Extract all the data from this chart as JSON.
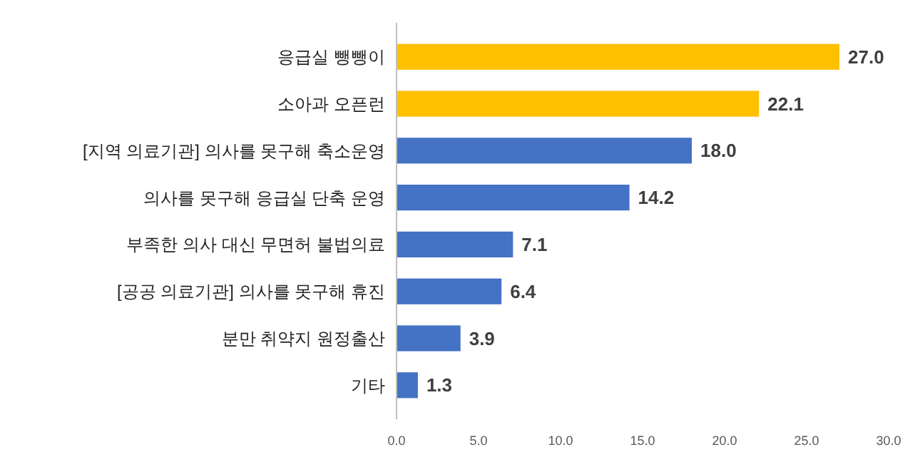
{
  "chart_data": {
    "type": "bar",
    "orientation": "horizontal",
    "categories": [
      "응급실 뺑뺑이",
      "소아과 오픈런",
      "[지역 의료기관] 의사를 못구해 축소운영",
      "의사를 못구해 응급실 단축 운영",
      "부족한 의사 대신 무면허 불법의료",
      "[공공 의료기관] 의사를 못구해 휴진",
      "분만 취약지 원정출산",
      "기타"
    ],
    "values": [
      27.0,
      22.1,
      18.0,
      14.2,
      7.1,
      6.4,
      3.9,
      1.3
    ],
    "value_labels": [
      "27.0",
      "22.1",
      "18.0",
      "14.2",
      "7.1",
      "6.4",
      "3.9",
      "1.3"
    ],
    "colors": [
      "#ffc000",
      "#ffc000",
      "#4472c4",
      "#4472c4",
      "#4472c4",
      "#4472c4",
      "#4472c4",
      "#4472c4"
    ],
    "xlim": [
      0,
      30
    ],
    "xticks": [
      {
        "value": 0,
        "label": "0.0"
      },
      {
        "value": 5,
        "label": "5.0"
      },
      {
        "value": 10,
        "label": "10.0"
      },
      {
        "value": 15,
        "label": "15.0"
      },
      {
        "value": 20,
        "label": "20.0"
      },
      {
        "value": 25,
        "label": "25.0"
      },
      {
        "value": 30,
        "label": "30.0"
      }
    ],
    "grid": false
  }
}
